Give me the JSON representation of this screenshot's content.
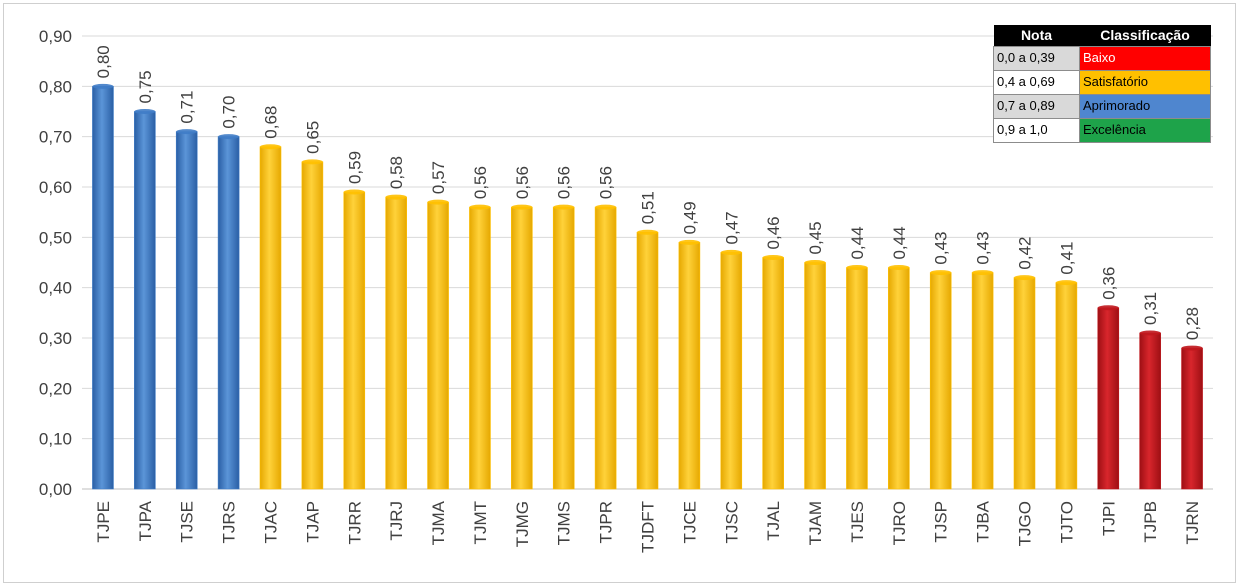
{
  "chart_data": {
    "type": "bar",
    "categories": [
      "TJPE",
      "TJPA",
      "TJSE",
      "TJRS",
      "TJAC",
      "TJAP",
      "TJRR",
      "TJRJ",
      "TJMA",
      "TJMT",
      "TJMG",
      "TJMS",
      "TJPR",
      "TJDFT",
      "TJCE",
      "TJSC",
      "TJAL",
      "TJAM",
      "TJES",
      "TJRO",
      "TJSP",
      "TJBA",
      "TJGO",
      "TJTO",
      "TJPI",
      "TJPB",
      "TJRN"
    ],
    "values": [
      0.8,
      0.75,
      0.71,
      0.7,
      0.68,
      0.65,
      0.59,
      0.58,
      0.57,
      0.56,
      0.56,
      0.56,
      0.56,
      0.51,
      0.49,
      0.47,
      0.46,
      0.45,
      0.44,
      0.44,
      0.43,
      0.43,
      0.42,
      0.41,
      0.36,
      0.31,
      0.28
    ],
    "value_labels": [
      "0,80",
      "0,75",
      "0,71",
      "0,70",
      "0,68",
      "0,65",
      "0,59",
      "0,58",
      "0,57",
      "0,56",
      "0,56",
      "0,56",
      "0,56",
      "0,51",
      "0,49",
      "0,47",
      "0,46",
      "0,45",
      "0,44",
      "0,44",
      "0,43",
      "0,43",
      "0,42",
      "0,41",
      "0,36",
      "0,31",
      "0,28"
    ],
    "bar_classes": [
      "aprimorado",
      "aprimorado",
      "aprimorado",
      "aprimorado",
      "satisfatorio",
      "satisfatorio",
      "satisfatorio",
      "satisfatorio",
      "satisfatorio",
      "satisfatorio",
      "satisfatorio",
      "satisfatorio",
      "satisfatorio",
      "satisfatorio",
      "satisfatorio",
      "satisfatorio",
      "satisfatorio",
      "satisfatorio",
      "satisfatorio",
      "satisfatorio",
      "satisfatorio",
      "satisfatorio",
      "satisfatorio",
      "satisfatorio",
      "baixo",
      "baixo",
      "baixo"
    ],
    "class_colors": {
      "baixo": "#c0171d",
      "satisfatorio": "#ffc000",
      "aprimorado": "#3f7cc6",
      "excelencia": "#1ea34a"
    },
    "ylim": [
      0,
      0.9
    ],
    "yticks": [
      0,
      0.1,
      0.2,
      0.3,
      0.4,
      0.5,
      0.6,
      0.7,
      0.8,
      0.9
    ],
    "ytick_labels": [
      "0,00",
      "0,10",
      "0,20",
      "0,30",
      "0,40",
      "0,50",
      "0,60",
      "0,70",
      "0,80",
      "0,90"
    ],
    "grid": true,
    "title": "",
    "xlabel": "",
    "ylabel": "",
    "legend_placement": "top-right"
  },
  "legend": {
    "header_nota": "Nota",
    "header_classificacao": "Classificação",
    "rows": [
      {
        "range": "0,0 a 0,39",
        "label": "Baixo",
        "color": "#ff0000",
        "range_bg": "#d9d9d9",
        "label_color": "#ffffff"
      },
      {
        "range": "0,4 a 0,69",
        "label": "Satisfatório",
        "color": "#ffc000",
        "range_bg": "#ffffff",
        "label_color": "#000000"
      },
      {
        "range": "0,7 a 0,89",
        "label": "Aprimorado",
        "color": "#4f86cf",
        "range_bg": "#d9d9d9",
        "label_color": "#000000"
      },
      {
        "range": "0,9 a 1,0",
        "label": "Excelência",
        "color": "#1ea34a",
        "range_bg": "#ffffff",
        "label_color": "#000000"
      }
    ]
  }
}
